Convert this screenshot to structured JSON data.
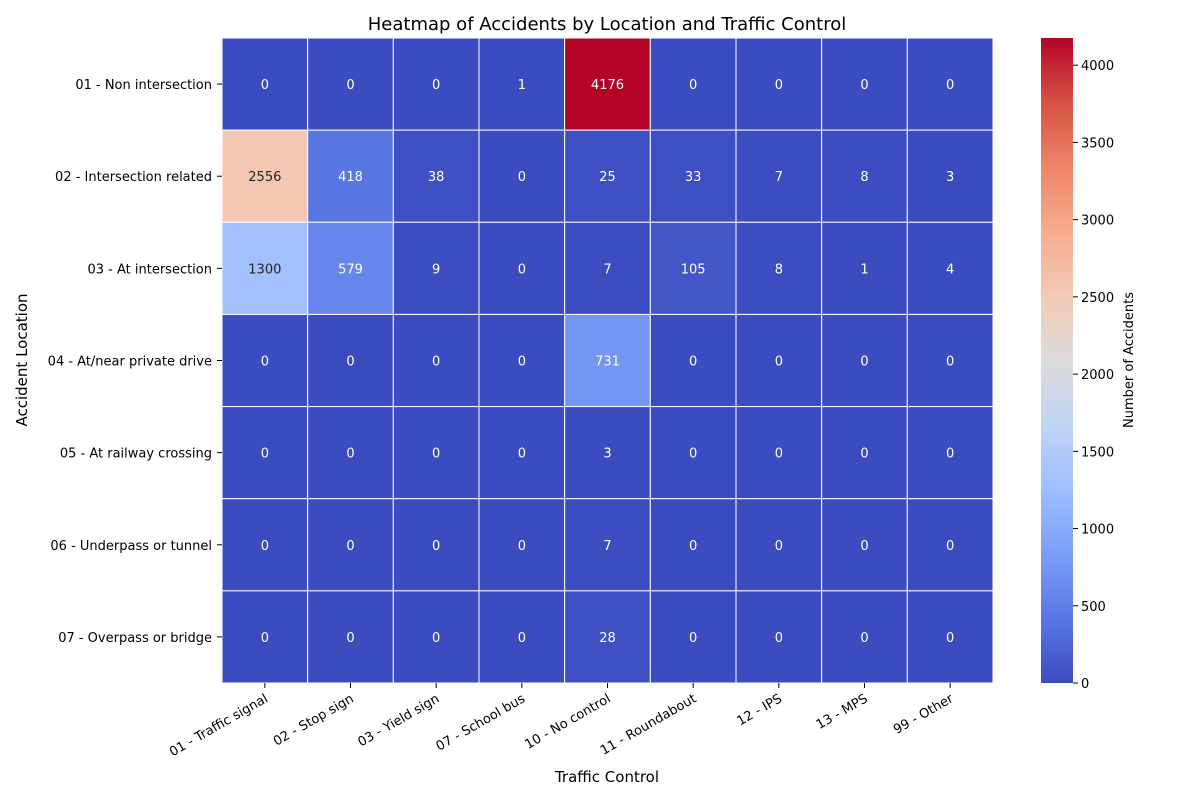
{
  "chart_data": {
    "type": "heatmap",
    "title": "Heatmap of Accidents by Location and Traffic Control",
    "xlabel": "Traffic Control",
    "ylabel": "Accident Location",
    "colorbar_label": "Number of Accidents",
    "colormap": "coolwarm",
    "colormap_stops": [
      "#3b4cc0",
      "#5977e3",
      "#7b9ff9",
      "#9ebeff",
      "#c0d4f5",
      "#dddcdc",
      "#f2cbb7",
      "#f7ac8e",
      "#ee8468",
      "#d65244",
      "#b40426"
    ],
    "vmin": 0,
    "vmax": 4176,
    "colorbar_ticks": [
      0,
      500,
      1000,
      1500,
      2000,
      2500,
      3000,
      3500,
      4000
    ],
    "x_categories": [
      "01 - Traffic signal",
      "02 - Stop sign",
      "03 - Yield sign",
      "07 - School bus",
      "10 - No control",
      "11 - Roundabout",
      "12 - IPS",
      "13 - MPS",
      "99 - Other"
    ],
    "y_categories": [
      "01 - Non intersection",
      "02 - Intersection related",
      "03 - At intersection",
      "04 - At/near private drive",
      "05 - At railway crossing",
      "06 - Underpass or tunnel",
      "07 - Overpass or bridge"
    ],
    "values": [
      [
        0,
        0,
        0,
        1,
        4176,
        0,
        0,
        0,
        0
      ],
      [
        2556,
        418,
        38,
        0,
        25,
        33,
        7,
        8,
        3
      ],
      [
        1300,
        579,
        9,
        0,
        7,
        105,
        8,
        1,
        4
      ],
      [
        0,
        0,
        0,
        0,
        731,
        0,
        0,
        0,
        0
      ],
      [
        0,
        0,
        0,
        0,
        3,
        0,
        0,
        0,
        0
      ],
      [
        0,
        0,
        0,
        0,
        7,
        0,
        0,
        0,
        0
      ],
      [
        0,
        0,
        0,
        0,
        28,
        0,
        0,
        0,
        0
      ]
    ]
  }
}
